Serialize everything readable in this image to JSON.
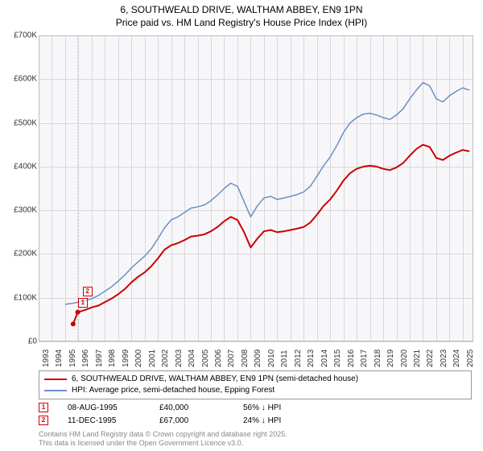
{
  "title": {
    "line1": "6, SOUTHWEALD DRIVE, WALTHAM ABBEY, EN9 1PN",
    "line2": "Price paid vs. HM Land Registry's House Price Index (HPI)",
    "fontsize": 12,
    "color": "#000000"
  },
  "chart": {
    "type": "line",
    "background_color": "#f7f7fa",
    "grid_color": "#d8d8dc",
    "border_color": "#bcbcc0",
    "xlim": [
      1993,
      2025.8
    ],
    "ylim": [
      0,
      700000
    ],
    "ytick_step": 100000,
    "yticks": [
      {
        "v": 0,
        "label": "£0"
      },
      {
        "v": 100000,
        "label": "£100K"
      },
      {
        "v": 200000,
        "label": "£200K"
      },
      {
        "v": 300000,
        "label": "£300K"
      },
      {
        "v": 400000,
        "label": "£400K"
      },
      {
        "v": 500000,
        "label": "£500K"
      },
      {
        "v": 600000,
        "label": "£600K"
      },
      {
        "v": 700000,
        "label": "£700K"
      }
    ],
    "xticks": [
      1993,
      1994,
      1995,
      1996,
      1997,
      1998,
      1999,
      2000,
      2001,
      2002,
      2003,
      2004,
      2005,
      2006,
      2007,
      2008,
      2009,
      2010,
      2011,
      2012,
      2013,
      2014,
      2015,
      2016,
      2017,
      2018,
      2019,
      2020,
      2021,
      2022,
      2023,
      2024,
      2025
    ],
    "axis_fontsize": 10,
    "series": {
      "property": {
        "label": "6, SOUTHWEALD DRIVE, WALTHAM ABBEY, EN9 1PN (semi-detached house)",
        "color": "#cc0000",
        "line_width": 2,
        "points": [
          [
            1995.6,
            40000
          ],
          [
            1995.95,
            67000
          ],
          [
            1996.5,
            72000
          ],
          [
            1997,
            78000
          ],
          [
            1997.5,
            82000
          ],
          [
            1998,
            90000
          ],
          [
            1998.5,
            98000
          ],
          [
            1999,
            108000
          ],
          [
            1999.5,
            120000
          ],
          [
            2000,
            135000
          ],
          [
            2000.5,
            148000
          ],
          [
            2001,
            158000
          ],
          [
            2001.5,
            172000
          ],
          [
            2002,
            190000
          ],
          [
            2002.5,
            210000
          ],
          [
            2003,
            220000
          ],
          [
            2003.5,
            225000
          ],
          [
            2004,
            232000
          ],
          [
            2004.5,
            240000
          ],
          [
            2005,
            242000
          ],
          [
            2005.5,
            245000
          ],
          [
            2006,
            252000
          ],
          [
            2006.5,
            262000
          ],
          [
            2007,
            275000
          ],
          [
            2007.5,
            285000
          ],
          [
            2008,
            278000
          ],
          [
            2008.5,
            250000
          ],
          [
            2009,
            215000
          ],
          [
            2009.5,
            235000
          ],
          [
            2010,
            252000
          ],
          [
            2010.5,
            255000
          ],
          [
            2011,
            250000
          ],
          [
            2011.5,
            252000
          ],
          [
            2012,
            255000
          ],
          [
            2012.5,
            258000
          ],
          [
            2013,
            262000
          ],
          [
            2013.5,
            272000
          ],
          [
            2014,
            290000
          ],
          [
            2014.5,
            310000
          ],
          [
            2015,
            325000
          ],
          [
            2015.5,
            345000
          ],
          [
            2016,
            368000
          ],
          [
            2016.5,
            385000
          ],
          [
            2017,
            395000
          ],
          [
            2017.5,
            400000
          ],
          [
            2018,
            402000
          ],
          [
            2018.5,
            400000
          ],
          [
            2019,
            395000
          ],
          [
            2019.5,
            392000
          ],
          [
            2020,
            398000
          ],
          [
            2020.5,
            408000
          ],
          [
            2021,
            425000
          ],
          [
            2021.5,
            440000
          ],
          [
            2022,
            450000
          ],
          [
            2022.5,
            445000
          ],
          [
            2023,
            420000
          ],
          [
            2023.5,
            415000
          ],
          [
            2024,
            425000
          ],
          [
            2024.5,
            432000
          ],
          [
            2025,
            438000
          ],
          [
            2025.5,
            435000
          ]
        ]
      },
      "hpi": {
        "label": "HPI: Average price, semi-detached house, Epping Forest",
        "color": "#6a8fc7",
        "line_width": 1.5,
        "points": [
          [
            1995,
            85000
          ],
          [
            1995.5,
            87000
          ],
          [
            1996,
            90000
          ],
          [
            1996.5,
            93000
          ],
          [
            1997,
            98000
          ],
          [
            1997.5,
            105000
          ],
          [
            1998,
            115000
          ],
          [
            1998.5,
            125000
          ],
          [
            1999,
            138000
          ],
          [
            1999.5,
            152000
          ],
          [
            2000,
            168000
          ],
          [
            2000.5,
            182000
          ],
          [
            2001,
            195000
          ],
          [
            2001.5,
            212000
          ],
          [
            2002,
            235000
          ],
          [
            2002.5,
            260000
          ],
          [
            2003,
            278000
          ],
          [
            2003.5,
            285000
          ],
          [
            2004,
            295000
          ],
          [
            2004.5,
            305000
          ],
          [
            2005,
            308000
          ],
          [
            2005.5,
            312000
          ],
          [
            2006,
            322000
          ],
          [
            2006.5,
            335000
          ],
          [
            2007,
            350000
          ],
          [
            2007.5,
            362000
          ],
          [
            2008,
            355000
          ],
          [
            2008.5,
            320000
          ],
          [
            2009,
            285000
          ],
          [
            2009.5,
            310000
          ],
          [
            2010,
            328000
          ],
          [
            2010.5,
            332000
          ],
          [
            2011,
            325000
          ],
          [
            2011.5,
            328000
          ],
          [
            2012,
            332000
          ],
          [
            2012.5,
            336000
          ],
          [
            2013,
            342000
          ],
          [
            2013.5,
            355000
          ],
          [
            2014,
            378000
          ],
          [
            2014.5,
            402000
          ],
          [
            2015,
            422000
          ],
          [
            2015.5,
            448000
          ],
          [
            2016,
            478000
          ],
          [
            2016.5,
            500000
          ],
          [
            2017,
            512000
          ],
          [
            2017.5,
            520000
          ],
          [
            2018,
            522000
          ],
          [
            2018.5,
            518000
          ],
          [
            2019,
            512000
          ],
          [
            2019.5,
            508000
          ],
          [
            2020,
            518000
          ],
          [
            2020.5,
            532000
          ],
          [
            2021,
            555000
          ],
          [
            2021.5,
            575000
          ],
          [
            2022,
            592000
          ],
          [
            2022.5,
            585000
          ],
          [
            2023,
            555000
          ],
          [
            2023.5,
            548000
          ],
          [
            2024,
            562000
          ],
          [
            2024.5,
            572000
          ],
          [
            2025,
            580000
          ],
          [
            2025.5,
            575000
          ]
        ]
      }
    },
    "markers": [
      {
        "n": "1",
        "x": 1995.6,
        "y": 40000,
        "color": "#cc0000"
      },
      {
        "n": "2",
        "x": 1995.95,
        "y": 67000,
        "color": "#cc0000"
      }
    ],
    "marker_guide": {
      "x": 1995.95,
      "color": "#f2b8c6",
      "dash": "2,2"
    }
  },
  "legend": {
    "border_color": "#999999",
    "fontsize": 10,
    "items": [
      {
        "color": "#cc0000",
        "width": 2,
        "bind": "chart.series.property.label"
      },
      {
        "color": "#6a8fc7",
        "width": 1.5,
        "bind": "chart.series.hpi.label"
      }
    ]
  },
  "data_points": {
    "fontsize": 10,
    "rows": [
      {
        "n": "1",
        "color": "#cc0000",
        "date": "08-AUG-1995",
        "price": "£40,000",
        "pct": "56% ↓ HPI"
      },
      {
        "n": "2",
        "color": "#cc0000",
        "date": "11-DEC-1995",
        "price": "£67,000",
        "pct": "24% ↓ HPI"
      }
    ]
  },
  "footnote": {
    "line1": "Contains HM Land Registry data © Crown copyright and database right 2025.",
    "line2": "This data is licensed under the Open Government Licence v3.0.",
    "color": "#888888",
    "fontsize": 9
  }
}
